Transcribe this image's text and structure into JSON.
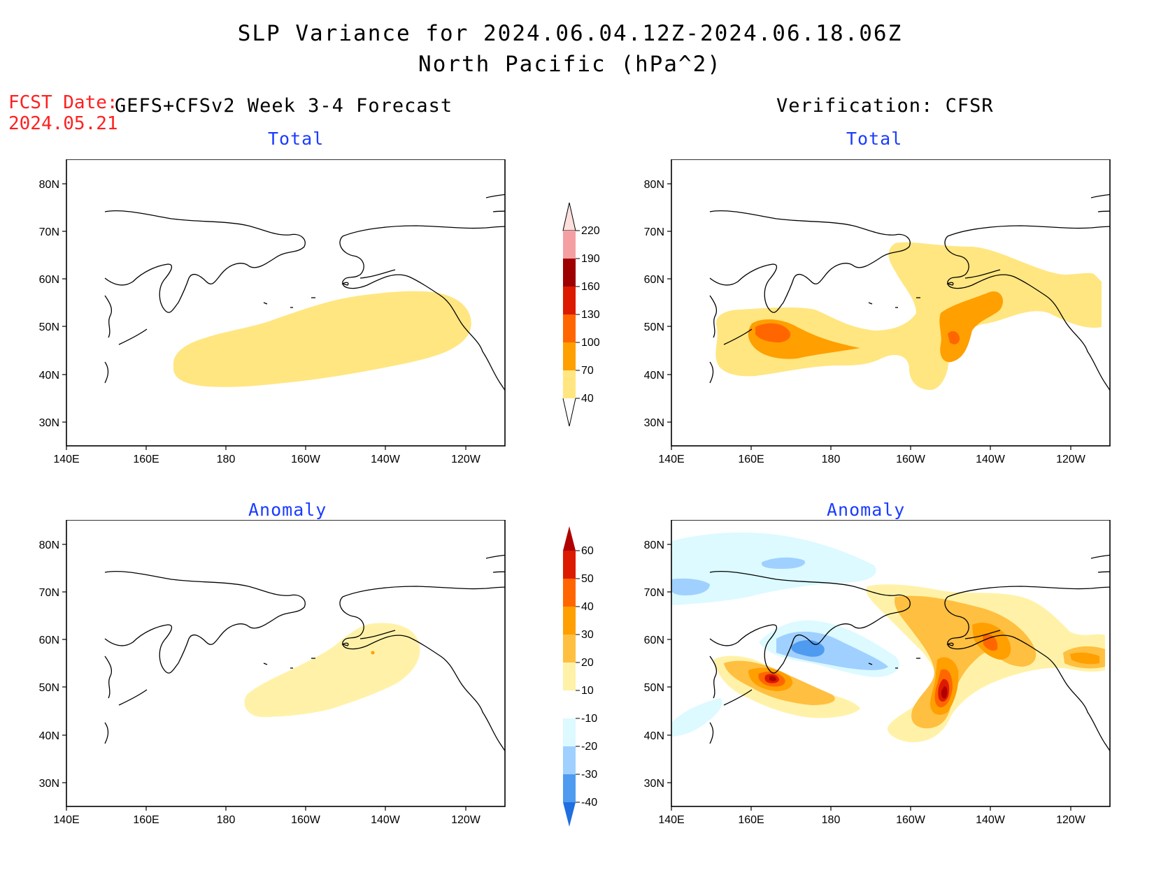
{
  "title_line1": "SLP Variance for 2024.06.04.12Z-2024.06.18.06Z",
  "title_line2": "North Pacific (hPa^2)",
  "fcst_date_label": "FCST Date:",
  "fcst_date_value": "2024.05.21",
  "left_header": "GEFS+CFSv2 Week 3-4 Forecast",
  "right_header": "Verification: CFSR",
  "panels": {
    "top_left_title": "Total",
    "top_right_title": "Total",
    "bottom_left_title": "Anomaly",
    "bottom_right_title": "Anomaly"
  },
  "axes": {
    "lat_labels": [
      "80N",
      "70N",
      "60N",
      "50N",
      "40N",
      "30N"
    ],
    "lon_labels": [
      "140E",
      "160E",
      "180",
      "160W",
      "140W",
      "120W"
    ]
  },
  "colorbar_total": {
    "labels": [
      "220",
      "190",
      "160",
      "130",
      "100",
      "70",
      "40"
    ],
    "colors": [
      "#fde0dd",
      "#f4a0a3",
      "#9e0000",
      "#dc1a00",
      "#ff6600",
      "#ff9f00",
      "#ffe680"
    ]
  },
  "colorbar_anomaly": {
    "labels": [
      "60",
      "50",
      "40",
      "30",
      "20",
      "10",
      "-10",
      "-20",
      "-30",
      "-40"
    ],
    "colors": [
      "#b00000",
      "#dc1a00",
      "#ff6600",
      "#ff9f00",
      "#ffbf40",
      "#fff2a8",
      "#ffffff",
      "#dcfaff",
      "#9fd0ff",
      "#4f9bf0",
      "#1f6fe0"
    ]
  }
}
